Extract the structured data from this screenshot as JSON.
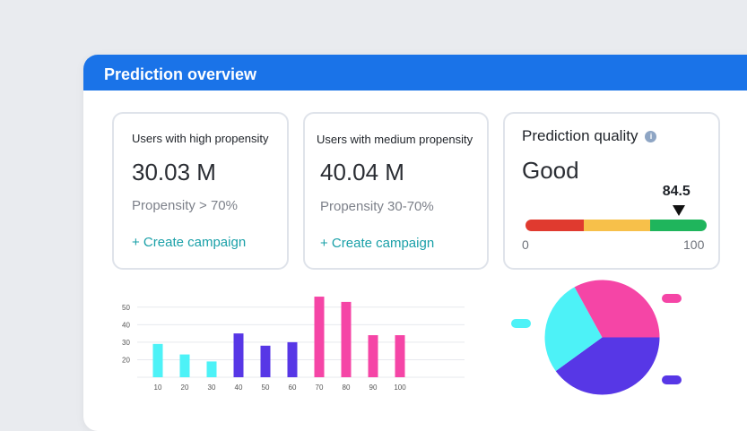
{
  "panel": {
    "title": "Prediction overview"
  },
  "cards": {
    "high": {
      "title": "Users with high propensity",
      "value": "30.03 M",
      "sub": "Propensity > 70%",
      "link": "+ Create campaign"
    },
    "medium": {
      "title": "Users with medium propensity",
      "value": "40.04 M",
      "sub": "Propensity 30-70%",
      "link": "+ Create campaign"
    }
  },
  "quality": {
    "title": "Prediction quality",
    "info_icon": "info-icon",
    "value": "Good",
    "score": "84.5",
    "score_value": 84.5,
    "scale_min": "0",
    "scale_max": "100",
    "segments": [
      {
        "color": "#e03a2f",
        "fraction": 0.32
      },
      {
        "color": "#f7c04a",
        "fraction": 0.37
      },
      {
        "color": "#1fb55c",
        "fraction": 0.31
      }
    ]
  },
  "chart_data": [
    {
      "type": "bar",
      "categories": [
        "10",
        "20",
        "30",
        "40",
        "50",
        "60",
        "70",
        "80",
        "90",
        "100"
      ],
      "values": [
        29,
        23,
        19,
        35,
        28,
        30,
        56,
        53,
        34,
        34
      ],
      "colors": [
        "#4df2f7",
        "#4df2f7",
        "#4df2f7",
        "#5737e6",
        "#5737e6",
        "#5737e6",
        "#f545a6",
        "#f545a6",
        "#f545a6",
        "#f545a6"
      ],
      "y_ticks": [
        "20",
        "30",
        "40",
        "50"
      ],
      "ylim": [
        10,
        55
      ],
      "grid": true
    },
    {
      "type": "pie",
      "slices": [
        {
          "value": 40,
          "color": "#5737e6"
        },
        {
          "value": 27,
          "color": "#4df2f7"
        },
        {
          "value": 33,
          "color": "#f545a6"
        }
      ],
      "legend_colors": [
        "#4df2f7",
        "#f545a6",
        "#5737e6"
      ]
    }
  ]
}
